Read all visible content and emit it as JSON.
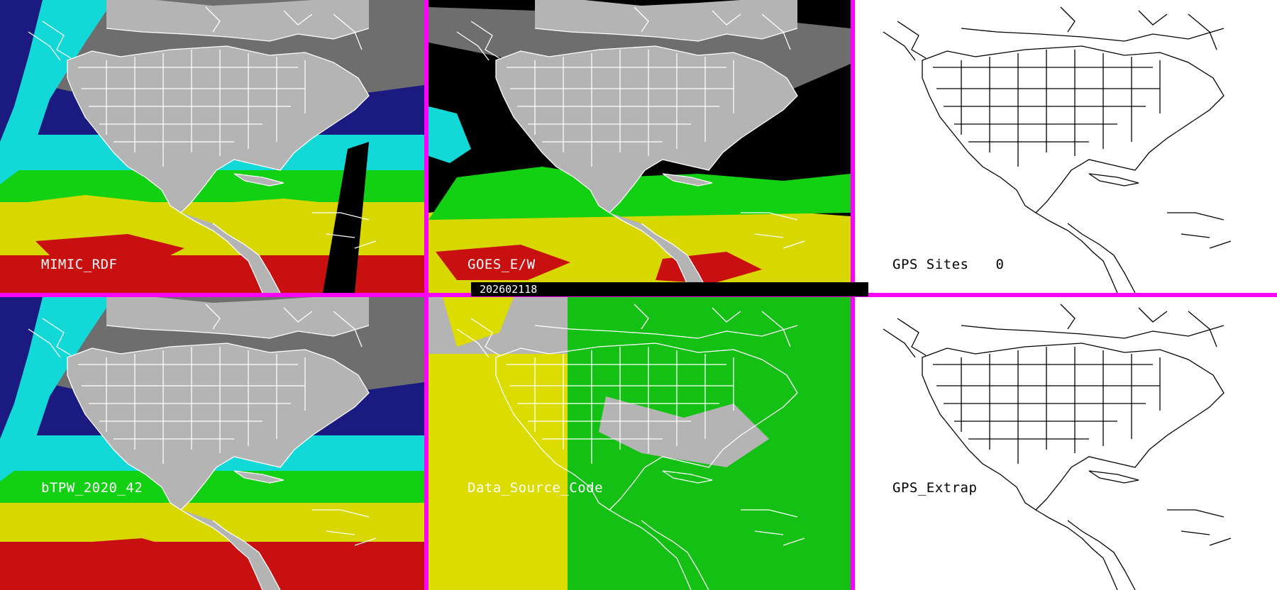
{
  "colors": {
    "frame": "#ff00ff",
    "dry": "#1a1a80",
    "moist_cyan": "#12d8d8",
    "moist_green": "#12d012",
    "very_moist_yellow": "#d8d800",
    "saturated_red": "#c81010",
    "cloud_gray": "#b4b4b4",
    "source_yellow": "#dcdc00",
    "source_green": "#14c014"
  },
  "panels": {
    "top_left": {
      "label": "MIMIC_RDF"
    },
    "top_middle": {
      "label": "GOES_E/W"
    },
    "top_right": {
      "label": "GPS Sites",
      "count": "0"
    },
    "bottom_left": {
      "label": "bTPW_2020_42"
    },
    "bottom_middle": {
      "label": "Data_Source_Code"
    },
    "bottom_right": {
      "label": "GPS_Extrap"
    }
  },
  "timestamp": "202602118"
}
